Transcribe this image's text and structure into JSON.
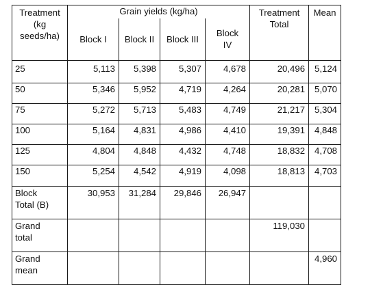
{
  "table": {
    "header": {
      "treatment": "Treatment (kg seeds/ha)",
      "treatment_lines": [
        "Treatment",
        "(kg",
        "seeds/ha)"
      ],
      "grain_yields": "Grain yields (kg/ha)",
      "blocks": [
        "Block I",
        "Block II",
        "Block III",
        "Block IV"
      ],
      "block4_lines": [
        "Block",
        "IV"
      ],
      "treatment_total_lines": [
        "Treatment",
        "Total"
      ],
      "mean": "Mean"
    },
    "rows": [
      {
        "treatment": "25",
        "b1": "5,113",
        "b2": "5,398",
        "b3": "5,307",
        "b4": "4,678",
        "total": "20,496",
        "mean": "5,124"
      },
      {
        "treatment": "50",
        "b1": "5,346",
        "b2": "5,952",
        "b3": "4,719",
        "b4": "4,264",
        "total": "20,281",
        "mean": "5,070"
      },
      {
        "treatment": "75",
        "b1": "5,272",
        "b2": "5,713",
        "b3": "5,483",
        "b4": "4,749",
        "total": "21,217",
        "mean": "5,304"
      },
      {
        "treatment": "100",
        "b1": "5,164",
        "b2": "4,831",
        "b3": "4,986",
        "b4": "4,410",
        "total": "19,391",
        "mean": "4,848"
      },
      {
        "treatment": "125",
        "b1": "4,804",
        "b2": "4,848",
        "b3": "4,432",
        "b4": "4,748",
        "total": "18,832",
        "mean": "4,708"
      },
      {
        "treatment": "150",
        "b1": "5,254",
        "b2": "4,542",
        "b3": "4,919",
        "b4": "4,098",
        "total": "18,813",
        "mean": "4,703"
      }
    ],
    "block_total": {
      "label_lines": [
        "Block",
        "Total (B)"
      ],
      "values": [
        "30,953",
        "31,284",
        "29,846",
        "26,947"
      ]
    },
    "grand_total": {
      "label_lines": [
        "Grand",
        "total"
      ],
      "value": "119,030"
    },
    "grand_mean": {
      "label_lines": [
        "Grand",
        "mean"
      ],
      "value": "4,960"
    }
  }
}
